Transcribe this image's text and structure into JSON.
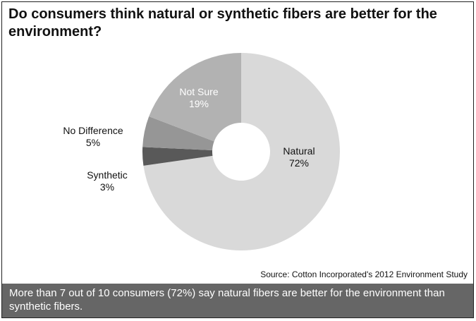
{
  "chart_data": {
    "type": "pie",
    "subtype": "donut",
    "title": "Do consumers think natural or synthetic fibers are better for the environment?",
    "slices": [
      {
        "label": "Natural",
        "value": 72,
        "display": "72%",
        "color": "#d9d9d9"
      },
      {
        "label": "Synthetic",
        "value": 3,
        "display": "3%",
        "color": "#595959"
      },
      {
        "label": "No Difference",
        "value": 5,
        "display": "5%",
        "color": "#969696"
      },
      {
        "label": "Not Sure",
        "value": 19,
        "display": "19%",
        "color": "#b2b2b2"
      }
    ],
    "start": "top",
    "direction": "clockwise"
  },
  "source": "Source: Cotton Incorporated's  2012 Environment  Study",
  "footer": "More than 7 out of 10 consumers (72%) say natural fibers are better for the environment than synthetic fibers."
}
